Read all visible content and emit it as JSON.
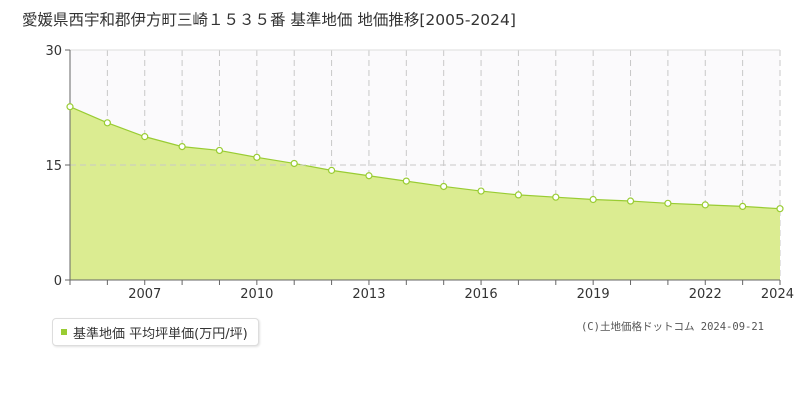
{
  "chart_data": {
    "type": "area",
    "title": "愛媛県西宇和郡伊方町三崎１５３５番 基準地価 地価推移[2005-2024]",
    "series": [
      {
        "name": "基準地価 平均坪単価(万円/坪)",
        "color": "#99cc33",
        "fill": "#dbec91",
        "values": [
          22.6,
          20.5,
          18.7,
          17.4,
          16.9,
          16.0,
          15.2,
          14.3,
          13.6,
          12.9,
          12.2,
          11.6,
          11.1,
          10.8,
          10.5,
          10.3,
          10.0,
          9.8,
          9.6,
          9.3
        ]
      }
    ],
    "x": [
      2005,
      2006,
      2007,
      2008,
      2009,
      2010,
      2011,
      2012,
      2013,
      2014,
      2015,
      2016,
      2017,
      2018,
      2019,
      2020,
      2021,
      2022,
      2023,
      2024
    ],
    "x_tick_labels": [
      "2007",
      "2010",
      "2013",
      "2016",
      "2019",
      "2022",
      "2024"
    ],
    "y_tick_labels": [
      "30",
      "15",
      "0"
    ],
    "ylim": [
      0,
      30
    ],
    "xlim": [
      2005,
      2024
    ],
    "xlabel": "",
    "ylabel": "",
    "grid": true,
    "legend_position": "bottom-left"
  },
  "legend": {
    "label": "基準地価 平均坪単価(万円/坪)"
  },
  "footer": {
    "copyright": "(C)土地価格ドットコム 2024-09-21"
  }
}
